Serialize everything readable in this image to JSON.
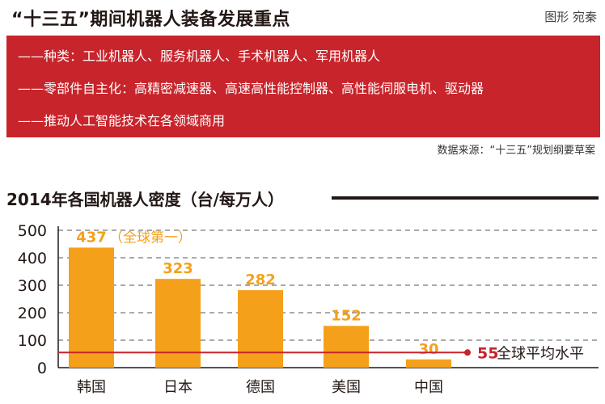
{
  "header": {
    "title": "“十三五”期间机器人装备发展重点",
    "credit": "图形 宛秦"
  },
  "banner": {
    "lines": [
      "——种类：工业机器人、服务机器人、手术机器人、军用机器人",
      "——零部件自主化：高精密减速器、高速高性能控制器、高性能伺服电机、驱动器",
      "——推动人工智能技术在各领域商用"
    ]
  },
  "source": "数据来源：“十三五”规划纲要草案",
  "colors": {
    "banner": "#c8242b",
    "bar": "#f5a01a",
    "bar_label": "#f5a01a",
    "avg_line": "#c8242b",
    "text": "#231815"
  },
  "chart_data": {
    "type": "bar",
    "title": "2014年各国机器人密度（台/每万人）",
    "categories": [
      "韩国",
      "日本",
      "德国",
      "美国",
      "中国"
    ],
    "values": [
      437,
      323,
      282,
      152,
      30
    ],
    "data_labels": [
      "437",
      "323",
      "282",
      "152",
      "30"
    ],
    "top_annotation": "（全球第一）",
    "yticks": [
      "0",
      "100",
      "200",
      "300",
      "400",
      "500"
    ],
    "ylim": [
      0,
      500
    ],
    "grid": "dashed horizontal",
    "reference_line": {
      "value": 55,
      "value_label": "55",
      "label": "全球平均水平"
    }
  }
}
